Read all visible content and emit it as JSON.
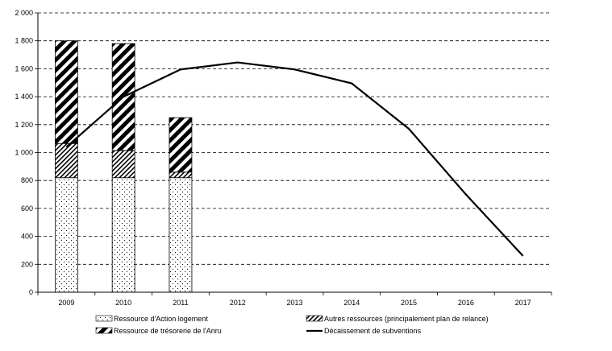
{
  "chart_data": {
    "type": "bar",
    "categories": [
      "2009",
      "2010",
      "2011",
      "2012",
      "2013",
      "2014",
      "2015",
      "2016",
      "2017"
    ],
    "ylim": [
      0,
      2000
    ],
    "yticks": [
      0,
      200,
      400,
      600,
      800,
      1000,
      1200,
      1400,
      1600,
      1800,
      2000
    ],
    "ytick_labels": [
      "0",
      "200",
      "400",
      "600",
      "800",
      "1 000",
      "1 200",
      "1 400",
      "1 600",
      "1 800",
      "2 000"
    ],
    "grid": "horizontal dashed",
    "legend_position": "bottom",
    "stacked_series": [
      {
        "name": "Ressource d'Action logement",
        "pattern": "dots",
        "values": [
          820,
          820,
          820,
          null,
          null,
          null,
          null,
          null,
          null
        ]
      },
      {
        "name": "Autres ressources (principalement plan de relance)",
        "pattern": "thin-diagonal",
        "values": [
          245,
          195,
          40,
          null,
          null,
          null,
          null,
          null,
          null
        ]
      },
      {
        "name": "Ressource de trésorerie de l'Anru",
        "pattern": "thick-diagonal",
        "values": [
          735,
          765,
          390,
          null,
          null,
          null,
          null,
          null,
          null
        ]
      }
    ],
    "line_series": [
      {
        "name": "Décaissement de subventions",
        "values": [
          1040,
          1400,
          1595,
          1645,
          1595,
          1495,
          1170,
          700,
          260
        ]
      }
    ]
  }
}
